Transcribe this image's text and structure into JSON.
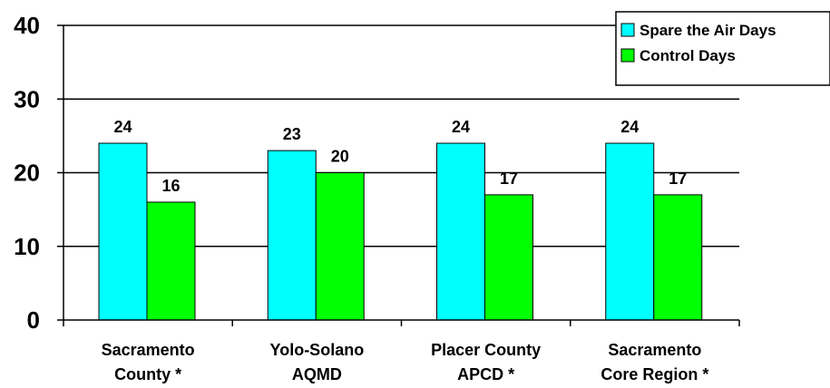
{
  "chart_data": {
    "type": "bar",
    "title": "",
    "xlabel": "",
    "ylabel": "",
    "ylim": [
      0,
      40
    ],
    "yticks": [
      "0",
      "10",
      "20",
      "30",
      "40"
    ],
    "categories": [
      [
        "Sacramento",
        "County *"
      ],
      [
        "Yolo-Solano",
        "AQMD"
      ],
      [
        "Placer County",
        "APCD *"
      ],
      [
        "Sacramento",
        "Core Region *"
      ]
    ],
    "series": [
      {
        "name": "Spare the Air Days",
        "color": "#00FFFF",
        "values": [
          24,
          23,
          24,
          24
        ]
      },
      {
        "name": "Control Days",
        "color": "#00FF00",
        "values": [
          16,
          20,
          17,
          17
        ]
      }
    ],
    "grid": true,
    "legend_position": "top-right"
  }
}
